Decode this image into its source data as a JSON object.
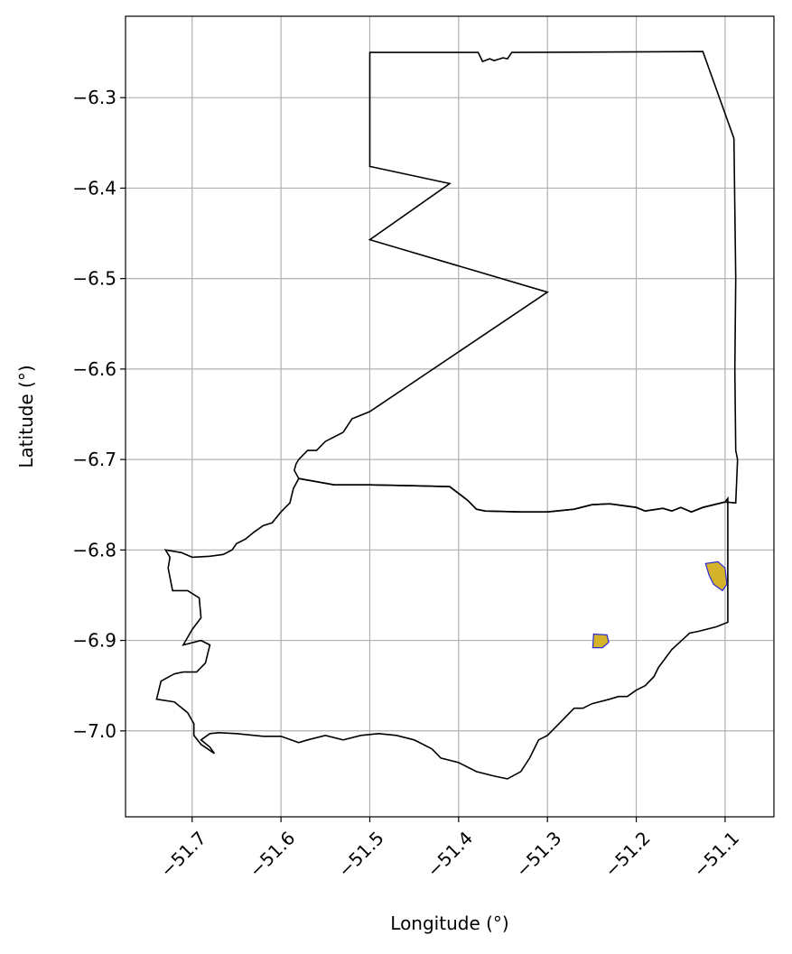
{
  "chart_data": {
    "type": "map",
    "xlabel": "Longitude (°)",
    "ylabel": "Latitude (°)",
    "xlim": [
      -51.775,
      -51.045
    ],
    "ylim": [
      -7.095,
      -6.21
    ],
    "grid": true,
    "x_ticks": [
      {
        "value": -51.7,
        "label": "−51.7"
      },
      {
        "value": -51.6,
        "label": "−51.6"
      },
      {
        "value": -51.5,
        "label": "−51.5"
      },
      {
        "value": -51.4,
        "label": "−51.4"
      },
      {
        "value": -51.3,
        "label": "−51.3"
      },
      {
        "value": -51.2,
        "label": "−51.2"
      },
      {
        "value": -51.1,
        "label": "−51.1"
      }
    ],
    "y_ticks": [
      {
        "value": -6.3,
        "label": "−6.3"
      },
      {
        "value": -6.4,
        "label": "−6.4"
      },
      {
        "value": -6.5,
        "label": "−6.5"
      },
      {
        "value": -6.6,
        "label": "−6.6"
      },
      {
        "value": -6.7,
        "label": "−6.7"
      },
      {
        "value": -6.8,
        "label": "−6.8"
      },
      {
        "value": -6.9,
        "label": "−6.9"
      },
      {
        "value": -7.0,
        "label": "−7.0"
      }
    ],
    "outline_color": "#000000",
    "patch_fill": "#d4b22c",
    "patch_edge": "#2b2bd6",
    "grid_color": "#b0b0b0",
    "north_boundary": [
      [
        -51.1,
        -6.747
      ],
      [
        -51.125,
        -6.753
      ],
      [
        -51.138,
        -6.758
      ],
      [
        -51.15,
        -6.753
      ],
      [
        -51.16,
        -6.757
      ],
      [
        -51.17,
        -6.754
      ],
      [
        -51.19,
        -6.757
      ],
      [
        -51.2,
        -6.753
      ],
      [
        -51.215,
        -6.751
      ],
      [
        -51.23,
        -6.749
      ],
      [
        -51.25,
        -6.75
      ],
      [
        -51.27,
        -6.755
      ],
      [
        -51.3,
        -6.758
      ],
      [
        -51.33,
        -6.758
      ],
      [
        -51.37,
        -6.757
      ],
      [
        -51.38,
        -6.755
      ],
      [
        -51.39,
        -6.745
      ],
      [
        -51.41,
        -6.73
      ],
      [
        -51.45,
        -6.729
      ],
      [
        -51.5,
        -6.728
      ],
      [
        -51.54,
        -6.728
      ],
      [
        -51.58,
        -6.721
      ]
    ],
    "upper_region": [
      [
        -51.5,
        -6.25
      ],
      [
        -51.378,
        -6.25
      ],
      [
        -51.373,
        -6.26
      ],
      [
        -51.365,
        -6.257
      ],
      [
        -51.36,
        -6.259
      ],
      [
        -51.35,
        -6.256
      ],
      [
        -51.345,
        -6.257
      ],
      [
        -51.34,
        -6.25
      ],
      [
        -51.125,
        -6.249
      ],
      [
        -51.09,
        -6.345
      ],
      [
        -51.088,
        -6.5
      ],
      [
        -51.089,
        -6.6
      ],
      [
        -51.088,
        -6.69
      ],
      [
        -51.086,
        -6.7
      ],
      [
        -51.088,
        -6.748
      ],
      [
        -51.1,
        -6.747
      ],
      [
        -51.125,
        -6.753
      ],
      [
        -51.138,
        -6.758
      ],
      [
        -51.15,
        -6.753
      ],
      [
        -51.16,
        -6.757
      ],
      [
        -51.17,
        -6.754
      ],
      [
        -51.19,
        -6.757
      ],
      [
        -51.2,
        -6.753
      ],
      [
        -51.215,
        -6.751
      ],
      [
        -51.23,
        -6.749
      ],
      [
        -51.25,
        -6.75
      ],
      [
        -51.27,
        -6.755
      ],
      [
        -51.3,
        -6.758
      ],
      [
        -51.33,
        -6.758
      ],
      [
        -51.37,
        -6.757
      ],
      [
        -51.38,
        -6.755
      ],
      [
        -51.39,
        -6.745
      ],
      [
        -51.41,
        -6.73
      ],
      [
        -51.45,
        -6.729
      ],
      [
        -51.5,
        -6.728
      ],
      [
        -51.54,
        -6.728
      ],
      [
        -51.58,
        -6.721
      ],
      [
        -51.585,
        -6.712
      ],
      [
        -51.583,
        -6.705
      ],
      [
        -51.58,
        -6.7
      ],
      [
        -51.57,
        -6.69
      ],
      [
        -51.56,
        -6.69
      ],
      [
        -51.55,
        -6.68
      ],
      [
        -51.53,
        -6.67
      ],
      [
        -51.52,
        -6.655
      ],
      [
        -51.5,
        -6.647
      ],
      [
        -51.3,
        -6.515
      ],
      [
        -51.5,
        -6.457
      ],
      [
        -51.41,
        -6.395
      ],
      [
        -51.5,
        -6.376
      ],
      [
        -51.5,
        -6.25
      ]
    ],
    "lower_region": [
      [
        -51.58,
        -6.721
      ],
      [
        -51.54,
        -6.728
      ],
      [
        -51.5,
        -6.728
      ],
      [
        -51.45,
        -6.729
      ],
      [
        -51.41,
        -6.73
      ],
      [
        -51.39,
        -6.745
      ],
      [
        -51.38,
        -6.755
      ],
      [
        -51.37,
        -6.757
      ],
      [
        -51.33,
        -6.758
      ],
      [
        -51.3,
        -6.758
      ],
      [
        -51.27,
        -6.755
      ],
      [
        -51.25,
        -6.75
      ],
      [
        -51.23,
        -6.749
      ],
      [
        -51.215,
        -6.751
      ],
      [
        -51.2,
        -6.753
      ],
      [
        -51.19,
        -6.757
      ],
      [
        -51.17,
        -6.754
      ],
      [
        -51.16,
        -6.757
      ],
      [
        -51.15,
        -6.753
      ],
      [
        -51.138,
        -6.758
      ],
      [
        -51.125,
        -6.753
      ],
      [
        -51.1,
        -6.747
      ],
      [
        -51.097,
        -6.743
      ],
      [
        -51.097,
        -6.88
      ],
      [
        -51.11,
        -6.885
      ],
      [
        -51.13,
        -6.89
      ],
      [
        -51.14,
        -6.892
      ],
      [
        -51.16,
        -6.91
      ],
      [
        -51.175,
        -6.93
      ],
      [
        -51.18,
        -6.94
      ],
      [
        -51.19,
        -6.95
      ],
      [
        -51.2,
        -6.955
      ],
      [
        -51.21,
        -6.962
      ],
      [
        -51.22,
        -6.962
      ],
      [
        -51.23,
        -6.965
      ],
      [
        -51.25,
        -6.97
      ],
      [
        -51.26,
        -6.975
      ],
      [
        -51.27,
        -6.975
      ],
      [
        -51.28,
        -6.985
      ],
      [
        -51.3,
        -7.005
      ],
      [
        -51.31,
        -7.01
      ],
      [
        -51.32,
        -7.03
      ],
      [
        -51.33,
        -7.045
      ],
      [
        -51.345,
        -7.053
      ],
      [
        -51.36,
        -7.05
      ],
      [
        -51.38,
        -7.045
      ],
      [
        -51.4,
        -7.035
      ],
      [
        -51.42,
        -7.03
      ],
      [
        -51.43,
        -7.02
      ],
      [
        -51.45,
        -7.01
      ],
      [
        -51.47,
        -7.005
      ],
      [
        -51.49,
        -7.003
      ],
      [
        -51.51,
        -7.005
      ],
      [
        -51.53,
        -7.01
      ],
      [
        -51.55,
        -7.005
      ],
      [
        -51.57,
        -7.01
      ],
      [
        -51.58,
        -7.013
      ],
      [
        -51.6,
        -7.006
      ],
      [
        -51.62,
        -7.006
      ],
      [
        -51.65,
        -7.003
      ],
      [
        -51.67,
        -7.002
      ],
      [
        -51.68,
        -7.003
      ],
      [
        -51.69,
        -7.01
      ],
      [
        -51.68,
        -7.018
      ],
      [
        -51.675,
        -7.025
      ],
      [
        -51.69,
        -7.015
      ],
      [
        -51.698,
        -7.005
      ],
      [
        -51.698,
        -6.992
      ],
      [
        -51.705,
        -6.98
      ],
      [
        -51.72,
        -6.968
      ],
      [
        -51.74,
        -6.965
      ],
      [
        -51.735,
        -6.945
      ],
      [
        -51.72,
        -6.937
      ],
      [
        -51.71,
        -6.935
      ],
      [
        -51.695,
        -6.935
      ],
      [
        -51.685,
        -6.925
      ],
      [
        -51.68,
        -6.905
      ],
      [
        -51.69,
        -6.9
      ],
      [
        -51.71,
        -6.905
      ],
      [
        -51.7,
        -6.888
      ],
      [
        -51.69,
        -6.875
      ],
      [
        -51.692,
        -6.853
      ],
      [
        -51.705,
        -6.845
      ],
      [
        -51.722,
        -6.845
      ],
      [
        -51.727,
        -6.82
      ],
      [
        -51.725,
        -6.808
      ],
      [
        -51.73,
        -6.8
      ],
      [
        -51.712,
        -6.803
      ],
      [
        -51.7,
        -6.808
      ],
      [
        -51.68,
        -6.807
      ],
      [
        -51.665,
        -6.805
      ],
      [
        -51.655,
        -6.8
      ],
      [
        -51.65,
        -6.793
      ],
      [
        -51.64,
        -6.788
      ],
      [
        -51.63,
        -6.78
      ],
      [
        -51.62,
        -6.773
      ],
      [
        -51.61,
        -6.77
      ],
      [
        -51.6,
        -6.758
      ],
      [
        -51.59,
        -6.748
      ],
      [
        -51.586,
        -6.732
      ],
      [
        -51.58,
        -6.721
      ]
    ],
    "patches": [
      {
        "polygon": [
          [
            -51.248,
            -6.893
          ],
          [
            -51.233,
            -6.894
          ],
          [
            -51.231,
            -6.902
          ],
          [
            -51.238,
            -6.908
          ],
          [
            -51.249,
            -6.908
          ]
        ]
      },
      {
        "polygon": [
          [
            -51.122,
            -6.815
          ],
          [
            -51.108,
            -6.813
          ],
          [
            -51.1,
            -6.82
          ],
          [
            -51.098,
            -6.838
          ],
          [
            -51.103,
            -6.845
          ],
          [
            -51.113,
            -6.838
          ],
          [
            -51.118,
            -6.828
          ]
        ]
      }
    ]
  }
}
